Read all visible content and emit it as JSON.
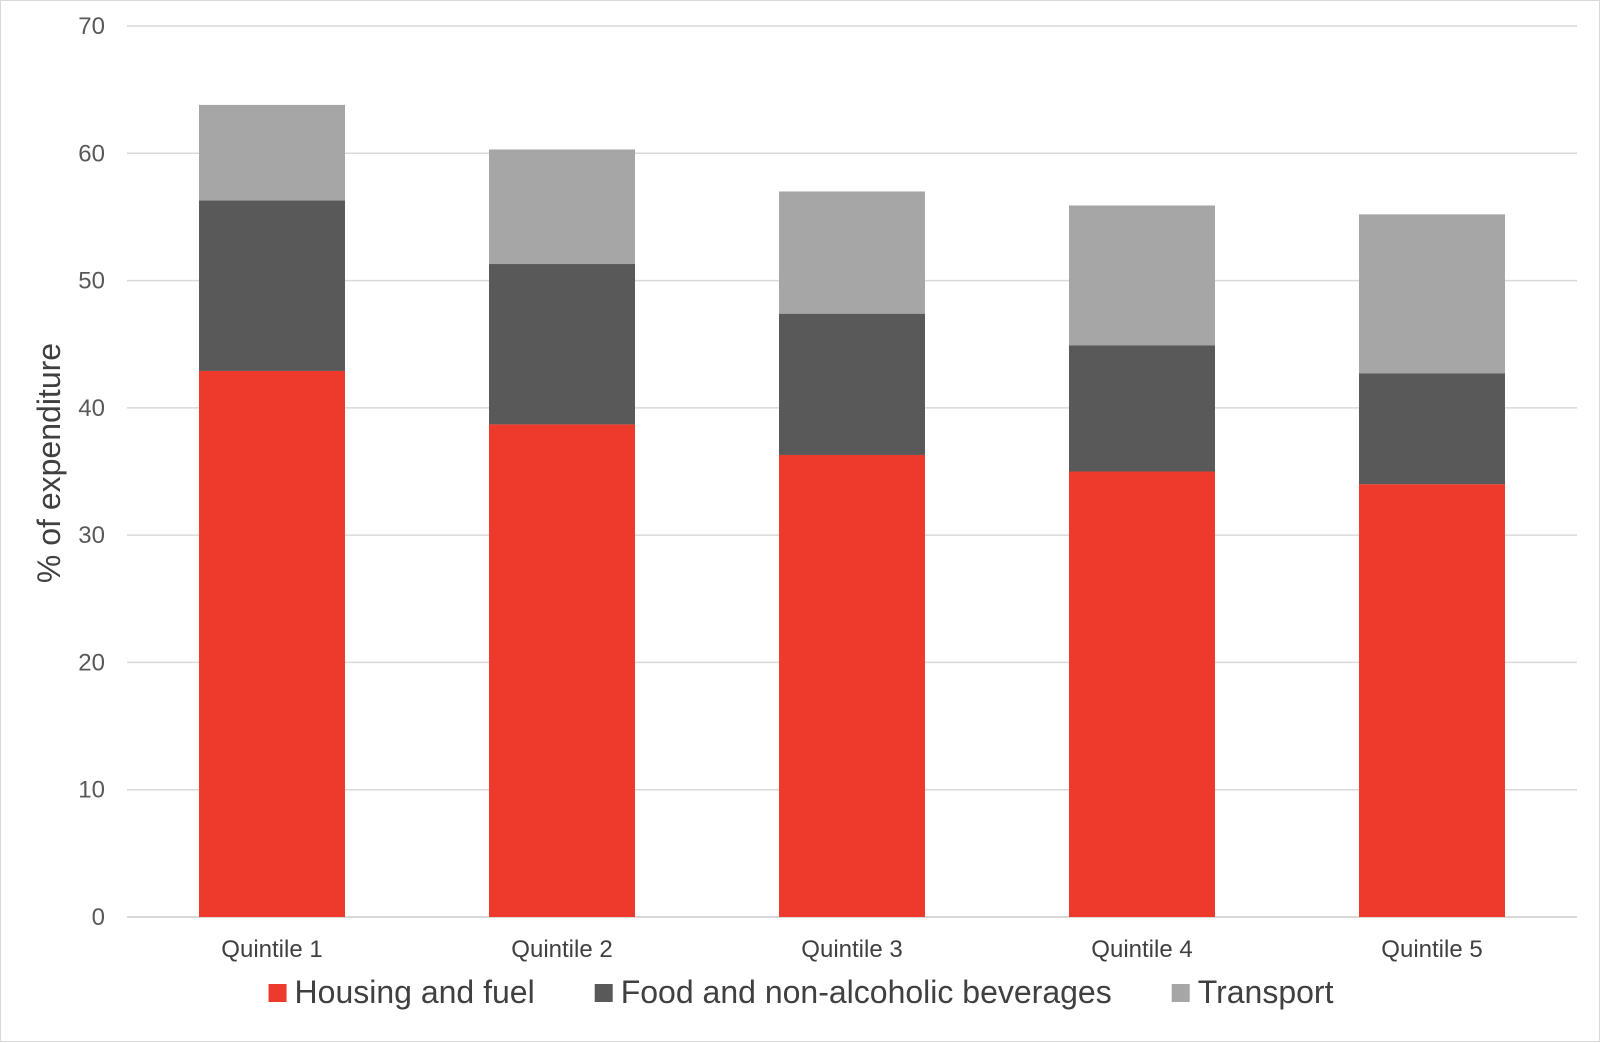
{
  "chart_data": {
    "type": "bar",
    "stacked": true,
    "title": "",
    "xlabel": "",
    "ylabel": "% of expenditure",
    "ylim": [
      0,
      70
    ],
    "yticks": [
      0,
      10,
      20,
      30,
      40,
      50,
      60,
      70
    ],
    "grid": true,
    "legend_position": "bottom",
    "categories": [
      "Quintile 1",
      "Quintile 2",
      "Quintile 3",
      "Quintile 4",
      "Quintile 5"
    ],
    "series": [
      {
        "name": "Housing and fuel",
        "color": "#ee3a2c",
        "values": [
          42.9,
          38.7,
          36.3,
          35.0,
          34.0
        ]
      },
      {
        "name": "Food and non-alcoholic beverages",
        "color": "#595959",
        "values": [
          13.4,
          12.6,
          11.1,
          9.9,
          8.7
        ]
      },
      {
        "name": "Transport",
        "color": "#a6a6a6",
        "values": [
          7.5,
          9.0,
          9.6,
          11.0,
          12.5
        ]
      }
    ]
  }
}
